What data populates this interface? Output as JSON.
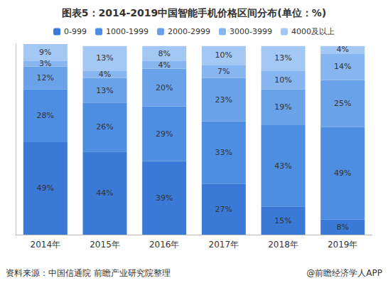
{
  "chart_data": {
    "type": "bar",
    "title": "图表5：2014-2019中国智能手机价格区间分布(单位：%)",
    "categories": [
      "2014年",
      "2015年",
      "2016年",
      "2017年",
      "2018年",
      "2019年"
    ],
    "series": [
      {
        "name": "0-999",
        "color": "#3a7ad6",
        "values": [
          49,
          44,
          39,
          27,
          15,
          8
        ],
        "value_labels": [
          "49%",
          "44%",
          "39%",
          "27%",
          "15%",
          "8%"
        ]
      },
      {
        "name": "1000-1999",
        "color": "#4d8ee3",
        "values": [
          28,
          26,
          29,
          33,
          43,
          49
        ],
        "value_labels": [
          "28%",
          "26%",
          "29%",
          "33%",
          "43%",
          "49%"
        ]
      },
      {
        "name": "2000-2999",
        "color": "#6aa2ea",
        "values": [
          12,
          13,
          20,
          23,
          19,
          25
        ],
        "value_labels": [
          "12%",
          "13%",
          "20%",
          "23%",
          "19%",
          "25%"
        ]
      },
      {
        "name": "3000-3999",
        "color": "#86b5ef",
        "values": [
          3,
          4,
          4,
          7,
          10,
          14
        ],
        "value_labels": [
          "3%",
          "4%",
          "4%",
          "7%",
          "10%",
          "14%"
        ]
      },
      {
        "name": "4000及以上",
        "color": "#a3c8f3",
        "values": [
          9,
          13,
          8,
          10,
          13,
          4
        ],
        "value_labels": [
          "9%",
          "13%",
          "8%",
          "10%",
          "13%",
          "4%"
        ]
      }
    ],
    "stacked": true,
    "data_labels": true,
    "ylim": [
      0,
      101
    ],
    "yticks": [],
    "tick_labels": "x",
    "grid": false,
    "legend": "top",
    "annotations": [
      "资料来源：中国信通院 前瞻产业研究院整理",
      "@前瞻经济学人APP"
    ]
  }
}
